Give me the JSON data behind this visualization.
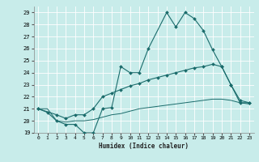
{
  "xlabel": "Humidex (Indice chaleur)",
  "bg_color": "#c8ecea",
  "grid_color": "#ffffff",
  "line_color": "#1a6b6b",
  "xlim": [
    -0.5,
    23.5
  ],
  "ylim": [
    19,
    29.5
  ],
  "yticks": [
    19,
    20,
    21,
    22,
    23,
    24,
    25,
    26,
    27,
    28,
    29
  ],
  "xticks": [
    0,
    1,
    2,
    3,
    4,
    5,
    6,
    7,
    8,
    9,
    10,
    11,
    12,
    13,
    14,
    15,
    16,
    17,
    18,
    19,
    20,
    21,
    22,
    23
  ],
  "line1_x": [
    0,
    1,
    2,
    3,
    4,
    5,
    6,
    7,
    8,
    9,
    10,
    11,
    12,
    14,
    15,
    16,
    17,
    18,
    19,
    20,
    21,
    22,
    23
  ],
  "line1_y": [
    21,
    20.7,
    20,
    19.7,
    19.7,
    19,
    19,
    21,
    21.1,
    24.5,
    24,
    24,
    26,
    29,
    27.8,
    29,
    28.5,
    27.5,
    25.9,
    24.5,
    23,
    21.5,
    21.5
  ],
  "line2_x": [
    0,
    2,
    3,
    4,
    5,
    6,
    7,
    8,
    9,
    10,
    11,
    12,
    13,
    14,
    15,
    16,
    17,
    18,
    19,
    20,
    21,
    22,
    23
  ],
  "line2_y": [
    21,
    20.5,
    20.2,
    20.5,
    20.5,
    21.0,
    22,
    22.3,
    22.6,
    22.9,
    23.1,
    23.4,
    23.6,
    23.8,
    24.0,
    24.2,
    24.4,
    24.5,
    24.7,
    24.5,
    23.0,
    21.7,
    21.5
  ],
  "line3_x": [
    0,
    1,
    2,
    3,
    4,
    5,
    6,
    7,
    8,
    9,
    10,
    11,
    12,
    13,
    14,
    15,
    16,
    17,
    18,
    19,
    20,
    21,
    22,
    23
  ],
  "line3_y": [
    21,
    21,
    20,
    19.9,
    20,
    20,
    20.1,
    20.3,
    20.5,
    20.6,
    20.8,
    21.0,
    21.1,
    21.2,
    21.3,
    21.4,
    21.5,
    21.6,
    21.7,
    21.8,
    21.8,
    21.7,
    21.5,
    21.4
  ]
}
